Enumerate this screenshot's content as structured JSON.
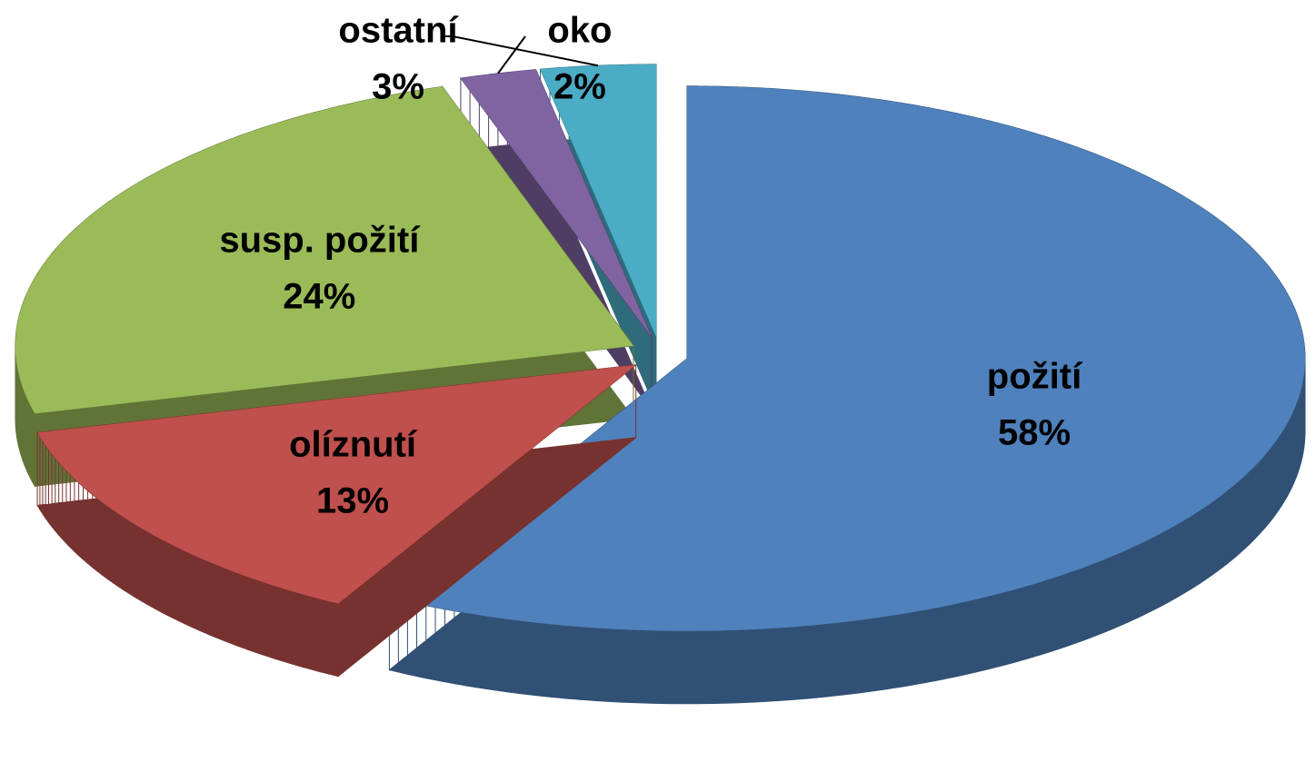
{
  "chart_data": {
    "type": "pie",
    "categories": [
      "požití",
      "olíznutí",
      "susp. požití",
      "oko",
      "ostatní"
    ],
    "values": [
      58,
      13,
      24,
      2,
      3
    ],
    "value_labels": [
      "58%",
      "13%",
      "24%",
      "2%",
      "3%"
    ],
    "colors": [
      "#4f81bd",
      "#c0504d",
      "#9bbb59",
      "#8064a2",
      "#4bacc6"
    ]
  }
}
